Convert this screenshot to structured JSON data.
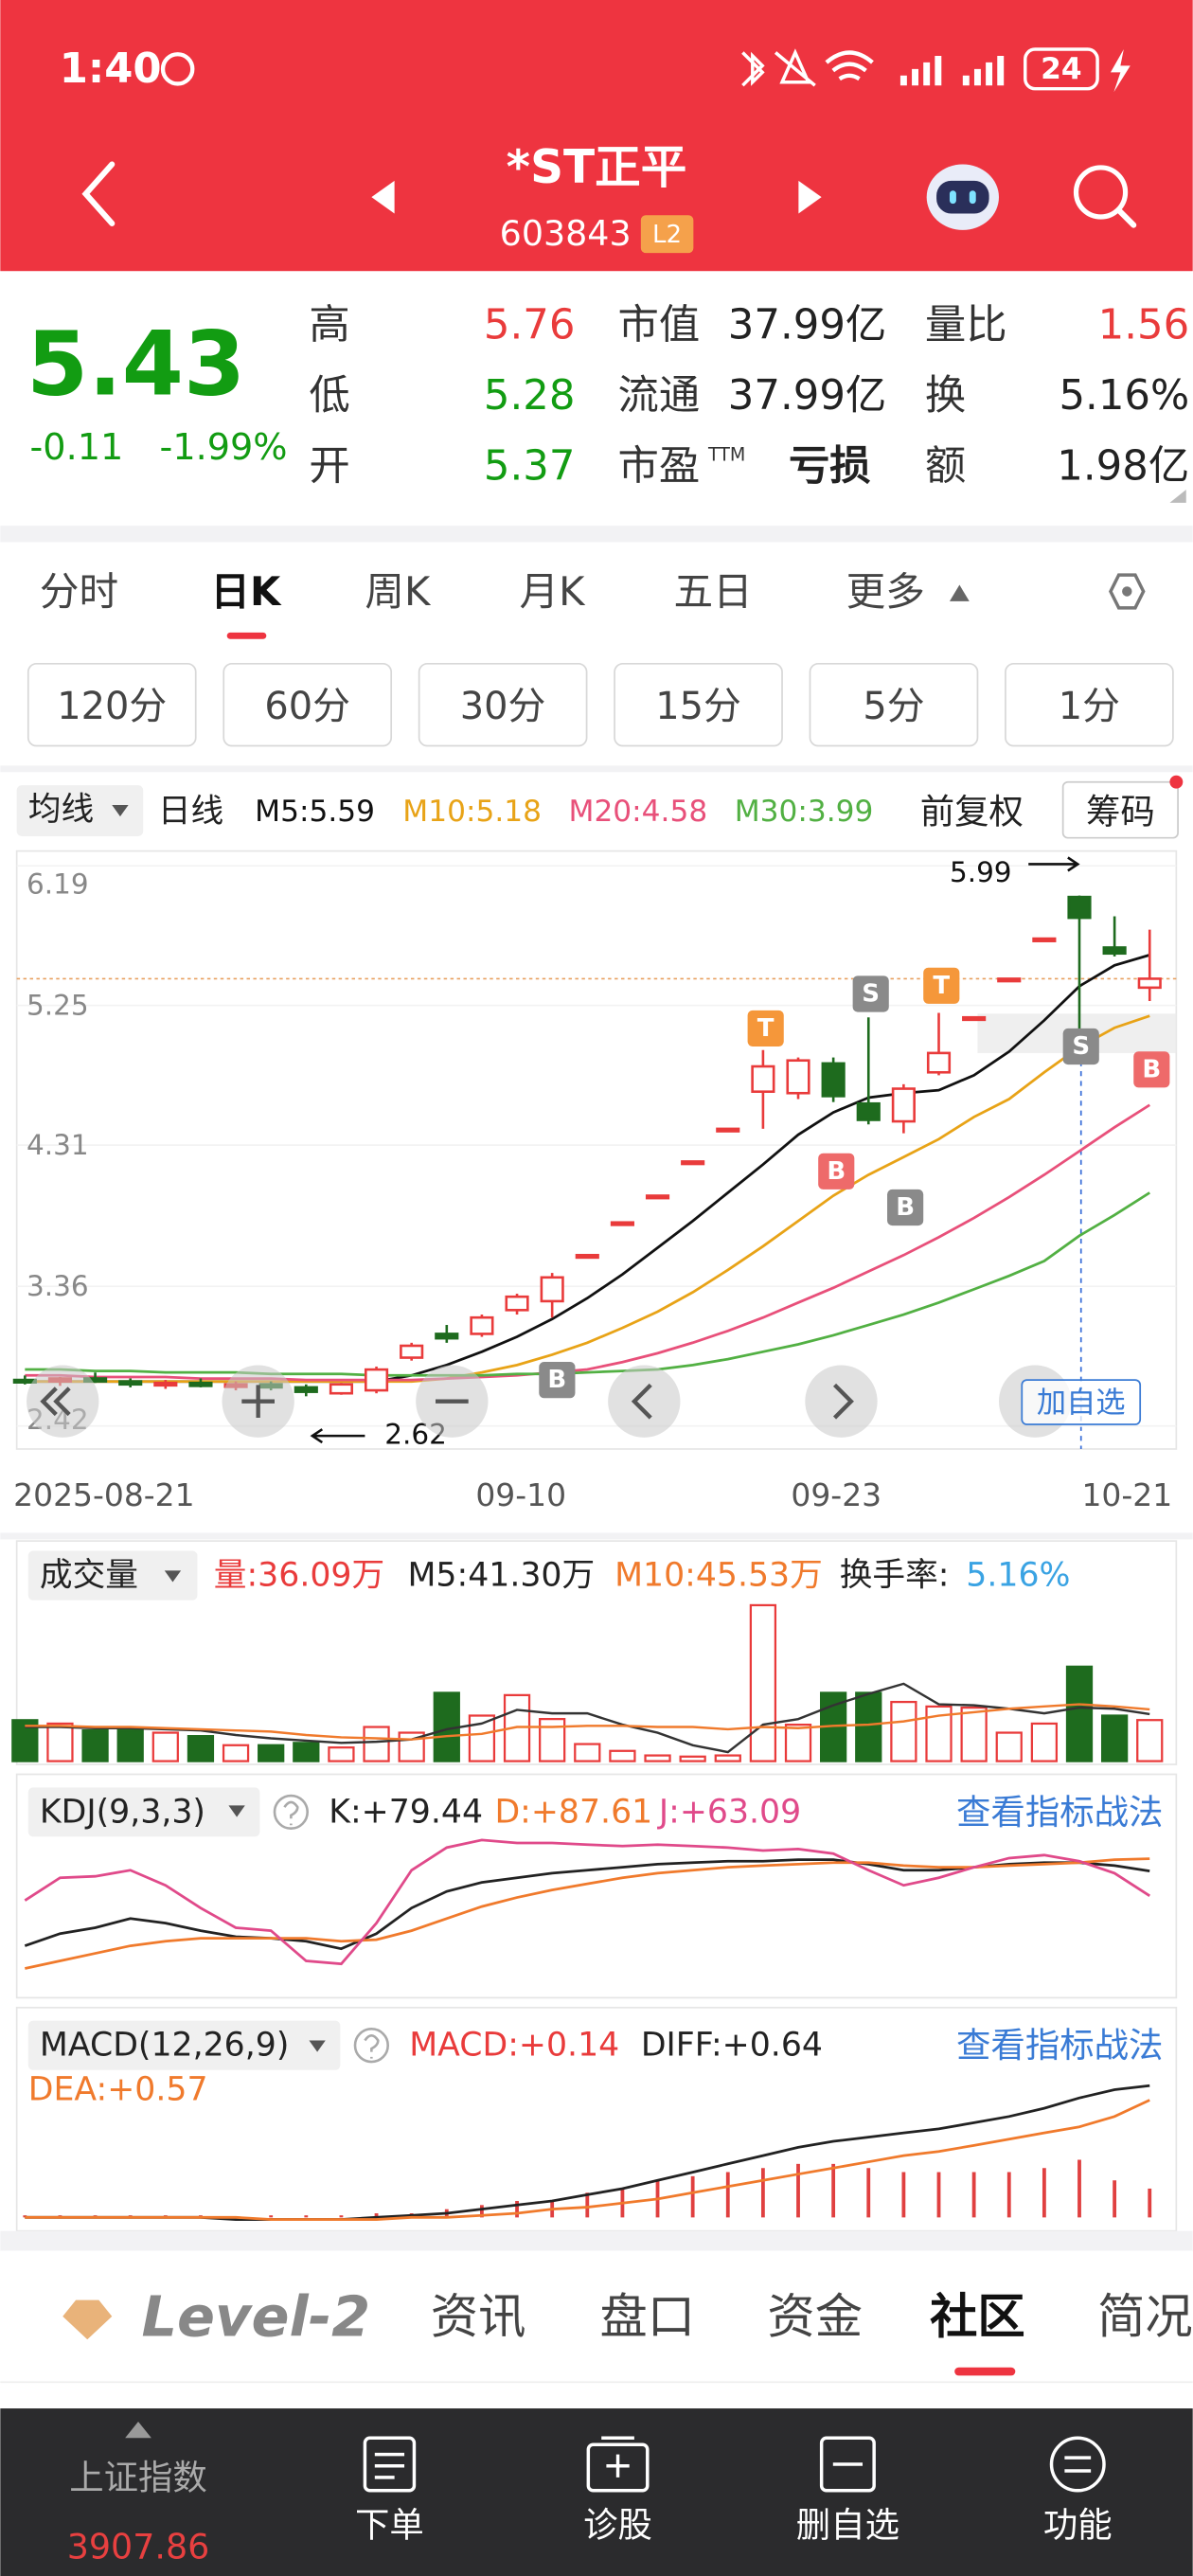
{
  "status_bar": {
    "time": "1:40",
    "battery": "24"
  },
  "header": {
    "name": "*ST正平",
    "code": "603843",
    "badge": "L2"
  },
  "quote": {
    "price": "5.43",
    "change": "-0.11",
    "change_pct": "-1.99%",
    "fields": [
      {
        "label": "高",
        "value": "5.76"
      },
      {
        "label": "低",
        "value": "5.28"
      },
      {
        "label": "开",
        "value": "5.37"
      },
      {
        "label": "市值",
        "value": "37.99亿"
      },
      {
        "label": "流通",
        "value": "37.99亿"
      },
      {
        "label": "市盈",
        "suffix": "TTM",
        "value": "亏损"
      },
      {
        "label": "量比",
        "value": "1.56"
      },
      {
        "label": "换",
        "value": "5.16%"
      },
      {
        "label": "额",
        "value": "1.98亿"
      }
    ]
  },
  "tabs": [
    "分时",
    "日K",
    "周K",
    "月K",
    "五日",
    "更多"
  ],
  "periods": [
    "120分",
    "60分",
    "30分",
    "15分",
    "5分",
    "1分"
  ],
  "indicator_bar": {
    "ma_button": "均线",
    "cycle": "日线",
    "ma_values": [
      {
        "text": "M5:5.59",
        "color": "#111111"
      },
      {
        "text": "M10:5.18",
        "color": "#e8a317"
      },
      {
        "text": "M20:4.58",
        "color": "#e8507a"
      },
      {
        "text": "M30:3.99",
        "color": "#52b043"
      }
    ],
    "adjust": "前复权",
    "chips": "筹码"
  },
  "kline": {
    "ylim": [
      2.42,
      6.19
    ],
    "yticks": [
      6.19,
      5.25,
      4.31,
      3.36,
      2.42
    ],
    "up_color": "#e93b3b",
    "down_color": "#1e6b1e",
    "candles": [
      [
        2.73,
        2.76,
        2.7,
        2.72
      ],
      [
        2.72,
        2.75,
        2.69,
        2.74
      ],
      [
        2.74,
        2.78,
        2.71,
        2.72
      ],
      [
        2.72,
        2.74,
        2.68,
        2.7
      ],
      [
        2.7,
        2.73,
        2.67,
        2.71
      ],
      [
        2.71,
        2.74,
        2.68,
        2.69
      ],
      [
        2.69,
        2.72,
        2.66,
        2.7
      ],
      [
        2.7,
        2.72,
        2.66,
        2.68
      ],
      [
        2.68,
        2.7,
        2.62,
        2.65
      ],
      [
        2.64,
        2.71,
        2.63,
        2.7
      ],
      [
        2.66,
        2.82,
        2.64,
        2.8
      ],
      [
        2.88,
        2.98,
        2.86,
        2.96
      ],
      [
        3.04,
        3.1,
        2.98,
        3.01
      ],
      [
        3.04,
        3.17,
        3.02,
        3.15
      ],
      [
        3.2,
        3.31,
        3.17,
        3.29
      ],
      [
        3.26,
        3.45,
        3.15,
        3.42
      ],
      [
        3.57,
        3.57,
        3.57,
        3.57
      ],
      [
        3.79,
        3.79,
        3.79,
        3.79
      ],
      [
        3.97,
        3.97,
        3.97,
        3.97
      ],
      [
        4.2,
        4.2,
        4.2,
        4.2
      ],
      [
        4.42,
        4.42,
        4.42,
        4.42
      ],
      [
        4.67,
        4.95,
        4.42,
        4.84
      ],
      [
        4.66,
        4.9,
        4.62,
        4.88
      ],
      [
        4.86,
        4.9,
        4.6,
        4.64
      ],
      [
        4.59,
        5.17,
        4.45,
        4.48
      ],
      [
        4.47,
        4.72,
        4.39,
        4.69
      ],
      [
        4.8,
        5.2,
        4.78,
        4.93
      ],
      [
        5.17,
        5.17,
        5.17,
        5.17
      ],
      [
        5.43,
        5.43,
        5.43,
        5.43
      ],
      [
        5.7,
        5.7,
        5.7,
        5.7
      ],
      [
        5.98,
        5.99,
        5.0,
        5.84
      ],
      [
        5.64,
        5.85,
        5.58,
        5.6
      ],
      [
        5.37,
        5.76,
        5.28,
        5.43
      ]
    ],
    "ma": [
      {
        "color": "#111111",
        "values": [
          2.72,
          2.72,
          2.72,
          2.72,
          2.72,
          2.72,
          2.72,
          2.72,
          2.72,
          2.72,
          2.72,
          2.76,
          2.83,
          2.92,
          3.02,
          3.14,
          3.28,
          3.44,
          3.62,
          3.8,
          3.99,
          4.18,
          4.38,
          4.53,
          4.63,
          4.66,
          4.68,
          4.78,
          4.94,
          5.15,
          5.38,
          5.52,
          5.59
        ]
      },
      {
        "color": "#e8a317",
        "values": [
          2.72,
          2.72,
          2.72,
          2.72,
          2.72,
          2.72,
          2.72,
          2.72,
          2.72,
          2.72,
          2.72,
          2.72,
          2.74,
          2.78,
          2.83,
          2.9,
          2.98,
          3.08,
          3.19,
          3.32,
          3.47,
          3.63,
          3.8,
          3.97,
          4.11,
          4.23,
          4.35,
          4.5,
          4.62,
          4.8,
          4.97,
          5.1,
          5.18
        ]
      },
      {
        "color": "#e8507a",
        "values": [
          2.76,
          2.76,
          2.75,
          2.75,
          2.75,
          2.74,
          2.74,
          2.74,
          2.73,
          2.73,
          2.73,
          2.73,
          2.74,
          2.75,
          2.76,
          2.78,
          2.8,
          2.85,
          2.91,
          2.98,
          3.06,
          3.15,
          3.25,
          3.35,
          3.46,
          3.57,
          3.69,
          3.82,
          3.96,
          4.11,
          4.27,
          4.43,
          4.58
        ]
      },
      {
        "color": "#52b043",
        "values": [
          2.8,
          2.8,
          2.79,
          2.79,
          2.78,
          2.78,
          2.78,
          2.77,
          2.77,
          2.77,
          2.76,
          2.76,
          2.76,
          2.76,
          2.77,
          2.77,
          2.78,
          2.79,
          2.8,
          2.83,
          2.87,
          2.92,
          2.97,
          3.03,
          3.1,
          3.17,
          3.25,
          3.34,
          3.43,
          3.53,
          3.7,
          3.84,
          3.99
        ]
      }
    ],
    "high_label": "5.99",
    "low_label": "2.62",
    "x_labels": [
      "2025-08-21",
      "09-10",
      "09-23",
      "10-21"
    ],
    "signals": [
      "T",
      "S",
      "T",
      "S",
      "B",
      "B",
      "B",
      "B"
    ],
    "add_button": "加自选"
  },
  "volume": {
    "button": "成交量",
    "current": "量:36.09万",
    "turnover_label": "换手率:",
    "turnover": "5.16%",
    "ylim": [
      0,
      140
    ],
    "values": [
      36,
      33,
      27,
      27,
      25,
      22,
      14,
      14,
      16,
      12,
      30,
      25,
      60,
      40,
      58,
      37,
      15,
      9,
      5,
      4,
      5,
      137,
      32,
      60,
      60,
      52,
      48,
      47,
      25,
      33,
      83,
      40,
      36.09
    ],
    "ma": [
      {
        "label": "M5:41.30万",
        "color": "#333333",
        "values": [
          30,
          30,
          29,
          29,
          28,
          27,
          23,
          20,
          18,
          16,
          17,
          19,
          28,
          33,
          45,
          42,
          42,
          32,
          25,
          14,
          8,
          32,
          37,
          49,
          59,
          68,
          50,
          49,
          46,
          42,
          47,
          46,
          41.3
        ]
      },
      {
        "label": "M10:45.53万",
        "color": "#f07a2c",
        "values": [
          31,
          31,
          30,
          30,
          29,
          28,
          27,
          26,
          23,
          21,
          20,
          19,
          22,
          24,
          30,
          30,
          31,
          31,
          30,
          30,
          28,
          30,
          29,
          31,
          32,
          35,
          40,
          43,
          46,
          48,
          50,
          48,
          45.53
        ]
      }
    ]
  },
  "kdj": {
    "button": "KDJ(9,3,3)",
    "link": "查看指标战法",
    "ylim": [
      0,
      100
    ],
    "lines": [
      {
        "label": "K:+79.44",
        "color": "#222222",
        "values": [
          30,
          38,
          42,
          48,
          45,
          40,
          36,
          35,
          33,
          28,
          38,
          55,
          66,
          72,
          75,
          78,
          80,
          82,
          84,
          85,
          86,
          86,
          87,
          87,
          84,
          80,
          80,
          82,
          84,
          85,
          85,
          83,
          79.44
        ]
      },
      {
        "label": "D:+87.61",
        "color": "#f07a2c",
        "values": [
          15,
          20,
          25,
          30,
          33,
          35,
          35,
          35,
          35,
          33,
          34,
          40,
          48,
          56,
          62,
          67,
          71,
          75,
          78,
          80,
          82,
          83,
          84,
          85,
          85,
          83,
          82,
          82,
          83,
          84,
          85,
          87,
          87.61
        ]
      },
      {
        "label": "J:+63.09",
        "color": "#e04a8a",
        "values": [
          60,
          75,
          76,
          80,
          70,
          55,
          42,
          40,
          20,
          18,
          45,
          80,
          95,
          100,
          98,
          98,
          97,
          96,
          97,
          96,
          95,
          93,
          94,
          91,
          80,
          70,
          75,
          82,
          88,
          90,
          86,
          78,
          63.09
        ]
      }
    ]
  },
  "macd": {
    "button": "MACD(12,26,9)",
    "label": "MACD:+0.14",
    "link": "查看指标战法",
    "ylim": [
      -0.05,
      0.7
    ],
    "histogram": [
      0.01,
      0.01,
      0.01,
      0.01,
      0.01,
      0.01,
      0,
      0.01,
      0.01,
      0.01,
      0.02,
      0.02,
      0.04,
      0.06,
      0.08,
      0.08,
      0.12,
      0.14,
      0.18,
      0.2,
      0.22,
      0.24,
      0.26,
      0.26,
      0.24,
      0.22,
      0.22,
      0.22,
      0.22,
      0.24,
      0.28,
      0.18,
      0.14
    ],
    "lines": [
      {
        "label": "DIFF:+0.64",
        "color": "#222222",
        "values": [
          0,
          0,
          0,
          0,
          0,
          0,
          -0.01,
          -0.01,
          -0.01,
          -0.01,
          0,
          0.01,
          0.02,
          0.04,
          0.06,
          0.08,
          0.11,
          0.14,
          0.18,
          0.22,
          0.26,
          0.3,
          0.34,
          0.37,
          0.39,
          0.41,
          0.43,
          0.46,
          0.49,
          0.53,
          0.58,
          0.62,
          0.64
        ]
      },
      {
        "label": "DEA:+0.57",
        "color": "#f07a2c",
        "values": [
          0,
          0,
          0,
          0,
          0,
          0,
          0,
          -0.01,
          -0.01,
          -0.01,
          -0.01,
          0,
          0,
          0.01,
          0.02,
          0.04,
          0.05,
          0.07,
          0.09,
          0.12,
          0.15,
          0.18,
          0.21,
          0.24,
          0.27,
          0.3,
          0.32,
          0.35,
          0.38,
          0.41,
          0.44,
          0.49,
          0.57
        ]
      }
    ]
  },
  "bottom_tabs": [
    "Level-2",
    "资讯",
    "盘口",
    "资金",
    "社区",
    "简况"
  ],
  "footer": {
    "index_name": "上证指数",
    "index_value": "3907.86",
    "actions": [
      "下单",
      "诊股",
      "删自选",
      "功能"
    ]
  }
}
